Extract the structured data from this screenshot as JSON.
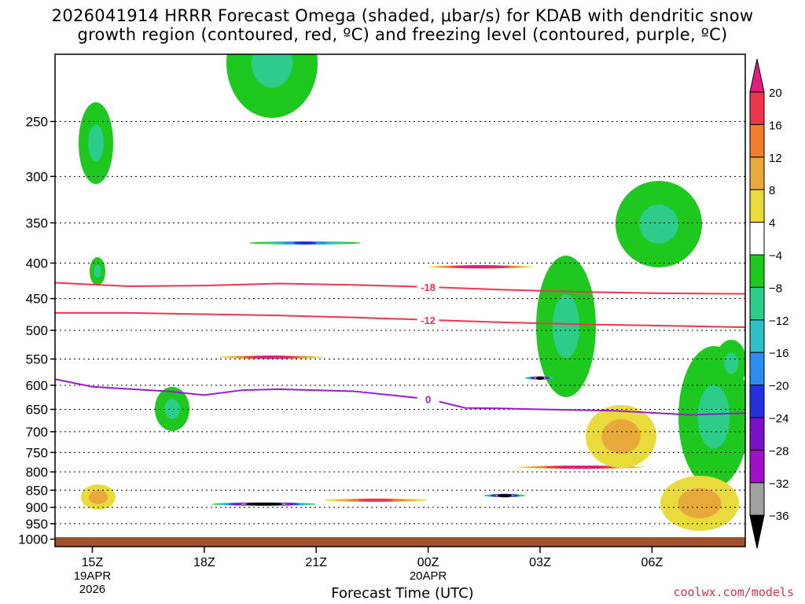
{
  "title_line1": "2026041914 HRRR Forecast Omega (shaded, μbar/s) for KDAB with dendritic snow",
  "title_line2": "growth region (contoured, red, ºC) and freezing level (contoured, purple, ºC)",
  "credit": "coolwx.com/models",
  "chart_data": {
    "type": "heatmap",
    "xlabel": "Forecast Time (UTC)",
    "ylabel": "",
    "x_axis": {
      "range_hours": [
        0,
        18.5
      ],
      "ticks": [
        {
          "hour": 1,
          "label": "15Z",
          "sub1": "19APR",
          "sub2": "2026"
        },
        {
          "hour": 4,
          "label": "18Z",
          "sub1": "",
          "sub2": ""
        },
        {
          "hour": 7,
          "label": "21Z",
          "sub1": "",
          "sub2": ""
        },
        {
          "hour": 10,
          "label": "00Z",
          "sub1": "20APR",
          "sub2": ""
        },
        {
          "hour": 13,
          "label": "03Z",
          "sub1": "",
          "sub2": ""
        },
        {
          "hour": 16,
          "label": "06Z",
          "sub1": "",
          "sub2": ""
        }
      ]
    },
    "y_axis": {
      "scale": "log-pressure",
      "units": "hPa",
      "range": [
        1025,
        200
      ],
      "ticks": [
        250,
        300,
        350,
        400,
        450,
        500,
        550,
        600,
        650,
        700,
        750,
        800,
        850,
        900,
        950,
        1000
      ]
    },
    "grid": true,
    "colorbar": {
      "units": "μbar/s",
      "labels": [
        "20",
        "16",
        "12",
        "8",
        "4",
        "−4",
        "−8",
        "−12",
        "−16",
        "−20",
        "−24",
        "−28",
        "−32",
        "−36"
      ],
      "colors": [
        "#e01e7d",
        "#f0344b",
        "#ef7d2a",
        "#e8a83a",
        "#eadb3c",
        "#ffffff",
        "#1ec81e",
        "#2dcc8a",
        "#2ec0c8",
        "#2c8cf0",
        "#2430e0",
        "#7a10c8",
        "#a010c8",
        "#a0a0a0",
        "#000000"
      ]
    },
    "contours": [
      {
        "field": "temperature",
        "color": "#f0344b",
        "level": "-18",
        "points": [
          [
            0,
            427
          ],
          [
            2,
            432
          ],
          [
            4,
            431
          ],
          [
            6,
            428
          ],
          [
            8,
            430
          ],
          [
            10,
            433
          ],
          [
            12,
            437
          ],
          [
            14,
            440
          ],
          [
            16,
            442
          ],
          [
            18.5,
            443
          ]
        ]
      },
      {
        "field": "temperature",
        "color": "#f0344b",
        "level": "-12",
        "points": [
          [
            0,
            472
          ],
          [
            2,
            472
          ],
          [
            4,
            474
          ],
          [
            6,
            476
          ],
          [
            8,
            479
          ],
          [
            10,
            483
          ],
          [
            12,
            487
          ],
          [
            14,
            490
          ],
          [
            16,
            492
          ],
          [
            18.5,
            495
          ]
        ]
      },
      {
        "field": "freezing level",
        "color": "#9a1ad0",
        "level": "0",
        "points": [
          [
            0,
            588
          ],
          [
            1,
            603
          ],
          [
            3,
            612
          ],
          [
            4,
            620
          ],
          [
            5,
            610
          ],
          [
            6,
            608
          ],
          [
            8,
            612
          ],
          [
            10,
            628
          ],
          [
            11,
            647
          ],
          [
            12,
            648
          ],
          [
            13,
            650
          ],
          [
            15,
            653
          ],
          [
            17,
            662
          ],
          [
            18.5,
            658
          ]
        ]
      }
    ],
    "regions": [
      {
        "sign": "up",
        "peak": "−36",
        "x": [
          4.2,
          7.0
        ],
        "p": [
          760,
          1000
        ]
      },
      {
        "sign": "up",
        "peak": "−36",
        "x": [
          11.5,
          12.6
        ],
        "p": [
          780,
          960
        ]
      },
      {
        "sign": "up",
        "peak": "−36",
        "x": [
          12.6,
          13.4
        ],
        "p": [
          440,
          780
        ]
      },
      {
        "sign": "up",
        "peak": "−24",
        "x": [
          5.2,
          8.2
        ],
        "p": [
          200,
          700
        ]
      },
      {
        "sign": "down",
        "peak": "20",
        "x": [
          4.4,
          7.2
        ],
        "p": [
          415,
          720
        ]
      },
      {
        "sign": "down",
        "peak": "20",
        "x": [
          10.0,
          12.8
        ],
        "p": [
          200,
          820
        ]
      },
      {
        "sign": "down",
        "peak": "20",
        "x": [
          12.4,
          15.8
        ],
        "p": [
          620,
          1000
        ]
      },
      {
        "sign": "down",
        "peak": "16",
        "x": [
          7.2,
          10.0
        ],
        "p": [
          780,
          990
        ]
      }
    ]
  }
}
